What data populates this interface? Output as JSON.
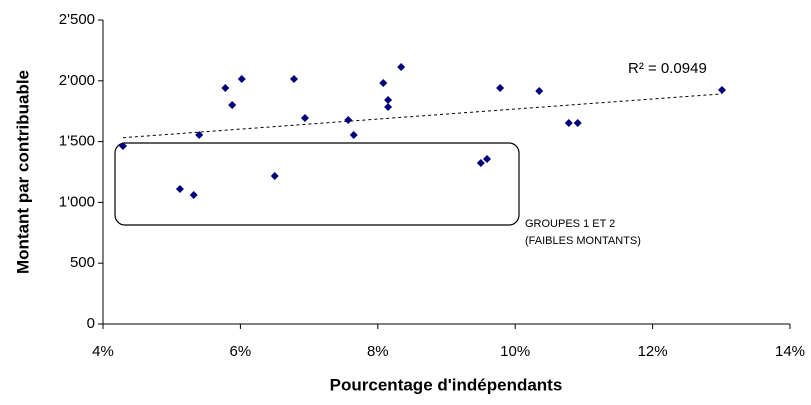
{
  "chart_data": {
    "type": "scatter",
    "x_label": "Pourcentage d'indépendants",
    "y_label": "Montant par contribuable",
    "x": [
      4.29,
      5.12,
      5.32,
      5.4,
      5.78,
      5.88,
      6.02,
      6.5,
      6.78,
      6.94,
      7.57,
      7.65,
      8.08,
      8.15,
      8.15,
      8.34,
      9.5,
      9.59,
      9.78,
      10.35,
      10.78,
      10.91,
      13.01
    ],
    "values": [
      1464,
      1110,
      1061,
      1554,
      1941,
      1801,
      2015,
      1217,
      2015,
      1694,
      1678,
      1554,
      1982,
      1842,
      1785,
      2113,
      1324,
      1357,
      1941,
      1916,
      1653,
      1653,
      1924
    ],
    "color": "#00007a",
    "trendline": true,
    "annotations": [
      "R² = 0.0949",
      "GROUPES 1 ET 2",
      "(FAIBLES MONTANTS)"
    ],
    "xlim": [
      4,
      14
    ],
    "xticks": [
      {
        "value": 4,
        "label": "4%"
      },
      {
        "value": 6,
        "label": "6%"
      },
      {
        "value": 8,
        "label": "8%"
      },
      {
        "value": 10,
        "label": "10%"
      },
      {
        "value": 12,
        "label": "12%"
      },
      {
        "value": 14,
        "label": "14%"
      }
    ],
    "ylim": [
      0,
      2500
    ],
    "yticks": [
      0,
      500,
      {
        "value": 1000,
        "label": "1'000"
      },
      {
        "value": 1500,
        "label": "1'500"
      },
      {
        "value": 2000,
        "label": "2'000"
      },
      {
        "value": 2500,
        "label": "2'500"
      }
    ],
    "grid": false
  }
}
